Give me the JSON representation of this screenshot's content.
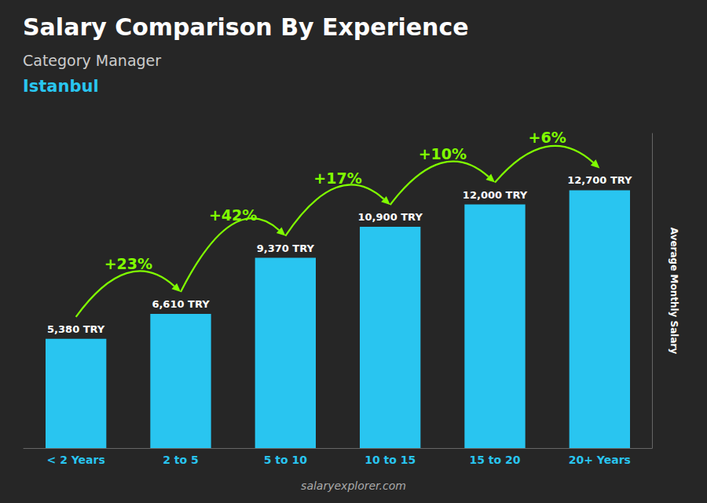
{
  "chart_data": {
    "type": "bar",
    "title": "Salary Comparison By Experience",
    "subtitle": "Category Manager",
    "location": "Istanbul",
    "source": "salaryexplorer.com",
    "ylabel": "Average Monthly Salary",
    "categories": [
      "< 2 Years",
      "2 to 5",
      "5 to 10",
      "10 to 15",
      "15 to 20",
      "20+ Years"
    ],
    "values": [
      5380,
      6610,
      9370,
      10900,
      12000,
      12700
    ],
    "value_labels": [
      "5,380 TRY",
      "6,610 TRY",
      "9,370 TRY",
      "10,900 TRY",
      "12,000 TRY",
      "12,700 TRY"
    ],
    "data_labels": true,
    "annotations": [
      "+23%",
      "+42%",
      "+17%",
      "+10%",
      "+6%"
    ],
    "color": "#29c5f0",
    "ylim": [
      0,
      15500
    ],
    "grid": false,
    "tick_labels": "x"
  }
}
